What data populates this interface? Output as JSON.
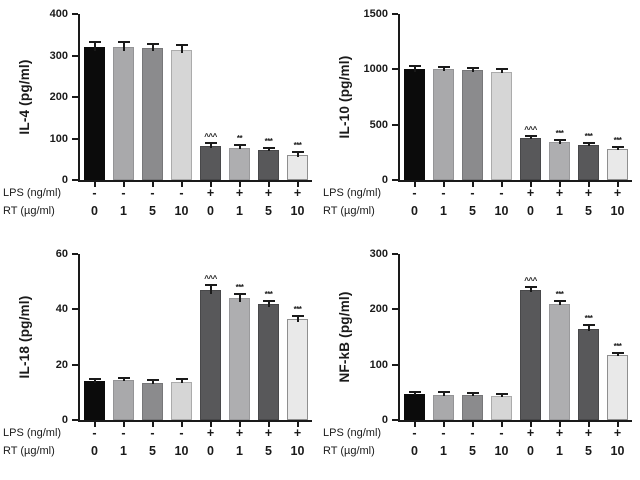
{
  "figure": {
    "background": "#ffffff",
    "axis_color": "#1a1a1a",
    "error_bar_color": "#1a1a1a",
    "bar_colors": [
      "#0b0b0b",
      "#a9a9ab",
      "#8b8b8d",
      "#d6d6d6",
      "#58585a",
      "#aeaeb0",
      "#58585a",
      "#e9e9e9"
    ],
    "bar_border_colors": [
      "#0b0b0b",
      "#949496",
      "#777779",
      "#ababab",
      "#48484a",
      "#9a9a9c",
      "#48484a",
      "#8f8f8f"
    ],
    "x_axis": {
      "row1_label": "LPS (ng/ml)",
      "row1_values": [
        "-",
        "-",
        "-",
        "-",
        "+",
        "+",
        "+",
        "+"
      ],
      "row2_label": "RT (µg/ml)",
      "row2_values": [
        "0",
        "1",
        "5",
        "10",
        "0",
        "1",
        "5",
        "10"
      ]
    }
  },
  "chart_data": [
    {
      "id": "il-4",
      "type": "bar",
      "title": "",
      "ylabel": "IL-4 (pg/ml)",
      "xlabel": "",
      "ylim": [
        0,
        400
      ],
      "yticks": [
        0,
        100,
        200,
        300,
        400
      ],
      "grid": false,
      "legend": false,
      "values": [
        320,
        320,
        318,
        314,
        82,
        78,
        72,
        60
      ],
      "errors": [
        9,
        9,
        8,
        9,
        4,
        4,
        3,
        4
      ],
      "significance": [
        "",
        "",
        "",
        "",
        "^^^",
        "**",
        "***",
        "***"
      ]
    },
    {
      "id": "il-10",
      "type": "bar",
      "title": "",
      "ylabel": "IL-10 (pg/ml)",
      "xlabel": "",
      "ylim": [
        0,
        1500
      ],
      "yticks": [
        0,
        500,
        1000,
        1500
      ],
      "grid": false,
      "legend": false,
      "values": [
        1000,
        1000,
        990,
        980,
        380,
        340,
        315,
        280
      ],
      "errors": [
        20,
        15,
        15,
        15,
        12,
        12,
        12,
        12
      ],
      "significance": [
        "",
        "",
        "",
        "",
        "^^^",
        "***",
        "***",
        "***"
      ]
    },
    {
      "id": "il-18",
      "type": "bar",
      "title": "",
      "ylabel": "IL-18 (pg/ml)",
      "xlabel": "",
      "ylim": [
        0,
        60
      ],
      "yticks": [
        0,
        20,
        40,
        60
      ],
      "grid": false,
      "legend": false,
      "values": [
        14,
        14.5,
        13.5,
        13.8,
        47,
        44,
        41.8,
        36.5
      ],
      "errors": [
        0.5,
        0.5,
        0.5,
        0.6,
        1.6,
        1.3,
        0.9,
        0.9
      ],
      "significance": [
        "",
        "",
        "",
        "",
        "^^^",
        "***",
        "***",
        "***"
      ]
    },
    {
      "id": "nf-kb",
      "type": "bar",
      "title": "",
      "ylabel": "NF-kB (pg/ml)",
      "xlabel": "",
      "ylim": [
        0,
        300
      ],
      "yticks": [
        0,
        100,
        200,
        300
      ],
      "grid": false,
      "legend": false,
      "values": [
        47,
        46,
        45,
        43,
        235,
        210,
        165,
        118
      ],
      "errors": [
        2,
        2,
        2,
        2,
        4,
        3,
        5,
        2
      ],
      "significance": [
        "",
        "",
        "",
        "",
        "^^^",
        "***",
        "***",
        "***"
      ]
    }
  ]
}
